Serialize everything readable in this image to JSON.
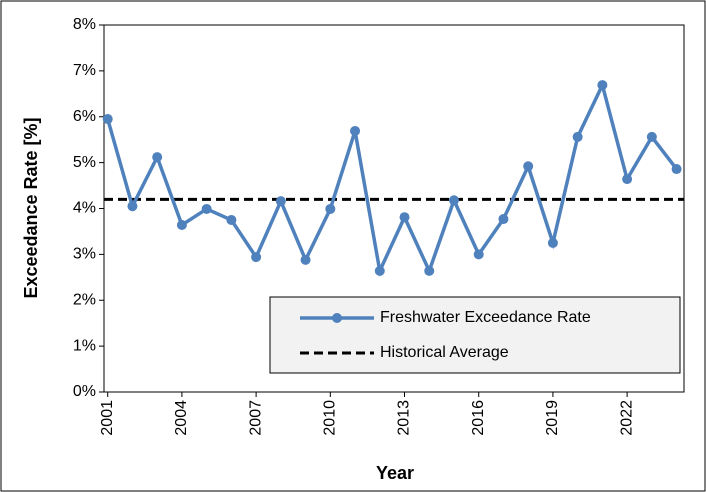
{
  "chart_data": {
    "type": "line",
    "x_label": "Year",
    "y_label": "Exceedance Rate [%]",
    "x": [
      2001,
      2002,
      2003,
      2004,
      2005,
      2006,
      2007,
      2008,
      2009,
      2010,
      2011,
      2012,
      2013,
      2014,
      2015,
      2016,
      2017,
      2018,
      2019,
      2020,
      2021,
      2022,
      2023,
      2024
    ],
    "series": [
      {
        "name": "Freshwater Exceedance Rate",
        "color": "#4f81bd",
        "values": [
          5.95,
          4.05,
          5.12,
          3.64,
          3.99,
          3.75,
          2.94,
          4.16,
          2.88,
          3.99,
          5.69,
          2.64,
          3.81,
          2.64,
          4.18,
          3.0,
          3.77,
          4.92,
          3.25,
          5.56,
          6.69,
          4.64,
          5.56,
          4.86
        ]
      }
    ],
    "average": {
      "name": "Historical Average",
      "value": 4.2,
      "color": "#000000",
      "dashed": true
    },
    "xlim": [
      2000.85,
      2024.3
    ],
    "xticks": [
      2001,
      2004,
      2007,
      2010,
      2013,
      2016,
      2019,
      2022
    ],
    "ylim": [
      0,
      8
    ],
    "yticks": [
      {
        "value": 0,
        "label": "0%"
      },
      {
        "value": 1,
        "label": "1%"
      },
      {
        "value": 2,
        "label": "2%"
      },
      {
        "value": 3,
        "label": "3%"
      },
      {
        "value": 4,
        "label": "4%"
      },
      {
        "value": 5,
        "label": "5%"
      },
      {
        "value": 6,
        "label": "6%"
      },
      {
        "value": 7,
        "label": "7%"
      },
      {
        "value": 8,
        "label": "8%"
      }
    ],
    "grid": false,
    "legend": "lower right"
  }
}
